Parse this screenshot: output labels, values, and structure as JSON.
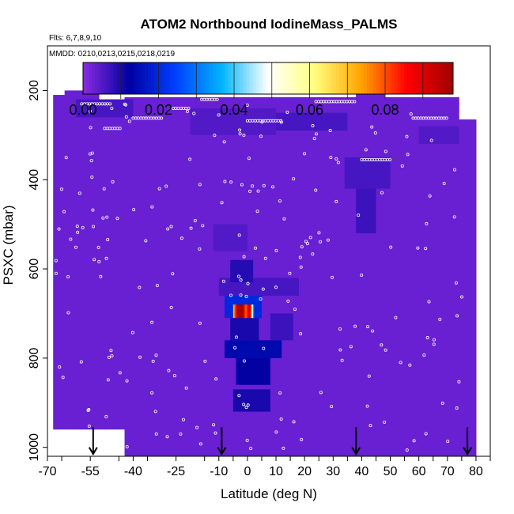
{
  "chart_data": {
    "type": "heatmap",
    "title": "ATOM2 Northbound IodineMass_PALMS",
    "subtitle_flights": "Flts: 6,7,8,9,10",
    "subtitle_dates": "MMDD: 0210,0213,0215,0218,0219",
    "xlabel": "Latitude (deg N)",
    "ylabel": "PSXC (mbar)",
    "xlim": [
      -70,
      85
    ],
    "ylim": [
      1020,
      100
    ],
    "x_ticks": [
      "-70",
      "-55",
      "-40",
      "-25",
      "-10",
      "0",
      "10",
      "20",
      "30",
      "40",
      "50",
      "60",
      "70",
      "80"
    ],
    "x_tick_values": [
      -70,
      -55,
      -40,
      -25,
      -10,
      0,
      10,
      20,
      30,
      40,
      50,
      60,
      70,
      80
    ],
    "y_ticks": [
      "200",
      "400",
      "600",
      "800",
      "1000"
    ],
    "y_tick_values": [
      200,
      400,
      600,
      800,
      1000
    ],
    "colorbar": {
      "min": 0.0,
      "max": 0.098,
      "tick_labels": [
        "0.00",
        "0.02",
        "0.04",
        "0.06",
        "0.08"
      ],
      "tick_values": [
        0.0,
        0.02,
        0.04,
        0.06,
        0.08
      ],
      "color_stops": [
        "#8a2be2",
        "#0000a0",
        "#0040ff",
        "#00b4ff",
        "#ffffff",
        "#ffff80",
        "#ffa500",
        "#ff0000",
        "#a00000"
      ]
    },
    "background_value": 0.003,
    "cells": [
      {
        "lat": [
          -8,
          5
        ],
        "p": [
          660,
          710
        ],
        "value": 0.02
      },
      {
        "lat": [
          -6,
          4
        ],
        "p": [
          710,
          760
        ],
        "value": 0.01
      },
      {
        "lat": [
          -8,
          12
        ],
        "p": [
          760,
          800
        ],
        "value": 0.014
      },
      {
        "lat": [
          -4,
          8
        ],
        "p": [
          800,
          860
        ],
        "value": 0.012
      },
      {
        "lat": [
          -5,
          8
        ],
        "p": [
          870,
          920
        ],
        "value": 0.01
      },
      {
        "lat": [
          -6,
          2
        ],
        "p": [
          580,
          630
        ],
        "value": 0.009
      },
      {
        "lat": [
          38,
          45
        ],
        "p": [
          420,
          520
        ],
        "value": 0.007
      },
      {
        "lat": [
          -5,
          3
        ],
        "p": [
          680,
          710
        ],
        "value": 0.09
      },
      {
        "lat": [
          0,
          2
        ],
        "p": [
          670,
          715
        ],
        "value": 0.05
      }
    ],
    "flight_markers_lat": [
      -54,
      -9,
      38,
      77
    ]
  }
}
